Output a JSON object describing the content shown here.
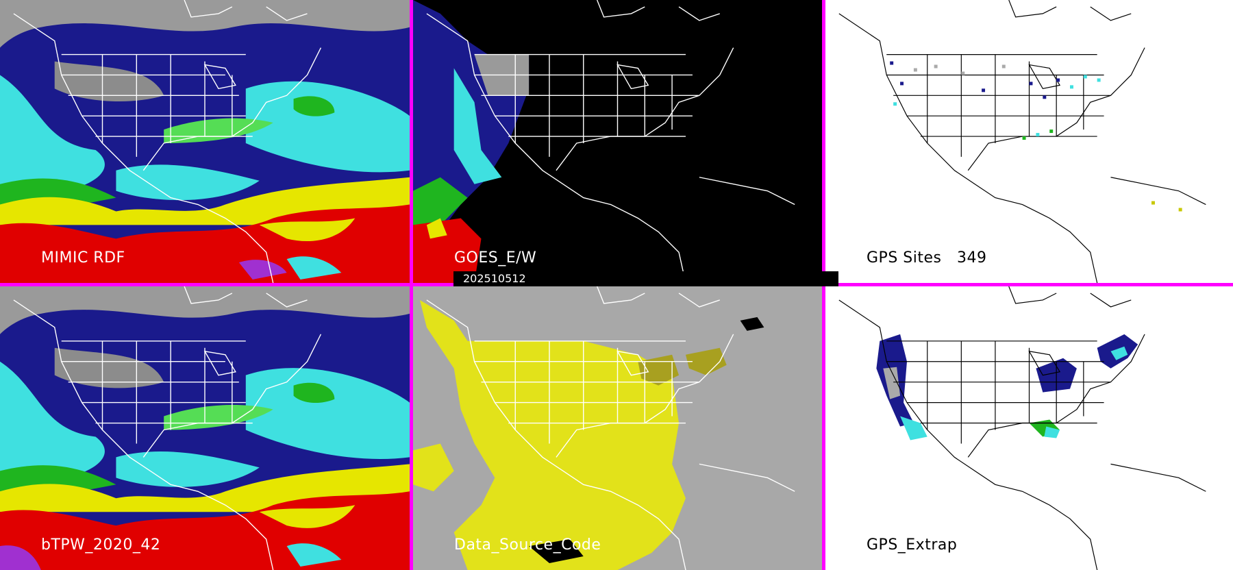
{
  "date_stamp": "202510512",
  "panels": [
    {
      "id": "mimic",
      "label": "MIMIC RDF"
    },
    {
      "id": "goes",
      "label": "GOES_E/W"
    },
    {
      "id": "gps",
      "label": "GPS Sites   349"
    },
    {
      "id": "btpw",
      "label": "bTPW_2020_42"
    },
    {
      "id": "dsc",
      "label": "Data_Source_Code"
    },
    {
      "id": "gpsx",
      "label": "GPS_Extrap"
    }
  ],
  "colors": {
    "frame": "#ff00ff",
    "tpw_gray": "#9a9a9a",
    "tpw_navy": "#1a1a8c",
    "tpw_cyan": "#3fe0e0",
    "tpw_green": "#1fb51f",
    "tpw_yellow": "#e6e600",
    "tpw_red": "#e00000",
    "dsc_background": "#a8a8a8",
    "dsc_yellow": "#e2e21a"
  }
}
